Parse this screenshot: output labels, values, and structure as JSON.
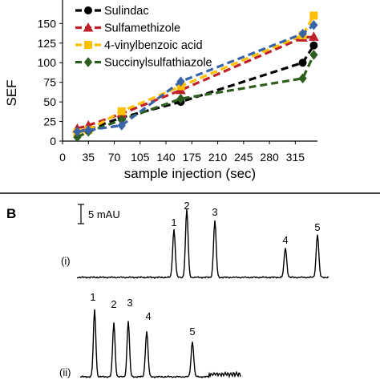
{
  "chart_data": [
    {
      "type": "line",
      "xlabel": "sample injection (sec)",
      "ylabel": "SEF",
      "xlim": [
        0,
        345
      ],
      "ylim": [
        0,
        150
      ],
      "x_ticks": [
        "0",
        "35",
        "70",
        "105",
        "140",
        "175",
        "210",
        "245",
        "280",
        "315"
      ],
      "y_ticks": [
        "0",
        "25",
        "50",
        "75",
        "100",
        "125",
        "150"
      ],
      "grid": false,
      "legend_position": "top-left",
      "x": [
        20,
        35,
        80,
        160,
        325,
        340
      ],
      "series": [
        {
          "name": "Sulindac",
          "color": "#000000",
          "marker": "circle",
          "values": [
            12,
            15,
            30,
            50,
            100,
            122
          ]
        },
        {
          "name": "Sulfamethizole",
          "color": "#c0202a",
          "marker": "triangle",
          "values": [
            16,
            20,
            35,
            65,
            132,
            133
          ]
        },
        {
          "name": "4-vinylbenzoic acid",
          "color": "#ffc000",
          "marker": "square",
          "values": [
            11,
            14,
            38,
            70,
            135,
            160
          ]
        },
        {
          "name": "Succinylsulfathiazole",
          "color": "#2e5e1d",
          "marker": "diamond",
          "values": [
            5,
            12,
            27,
            54,
            80,
            110
          ]
        },
        {
          "name": "",
          "color": "#3a64a8",
          "marker": "diamond",
          "values": [
            12,
            14,
            20,
            76,
            137,
            148
          ]
        }
      ]
    },
    {
      "type": "line",
      "panel_label": "B",
      "scale_bar_label": "5 mAU",
      "traces": [
        {
          "label": "(i)",
          "peak_labels": [
            "1",
            "2",
            "3",
            "4",
            "5"
          ]
        },
        {
          "label": "(ii)",
          "peak_labels": [
            "1",
            "2",
            "3",
            "4",
            "5"
          ]
        }
      ]
    }
  ]
}
